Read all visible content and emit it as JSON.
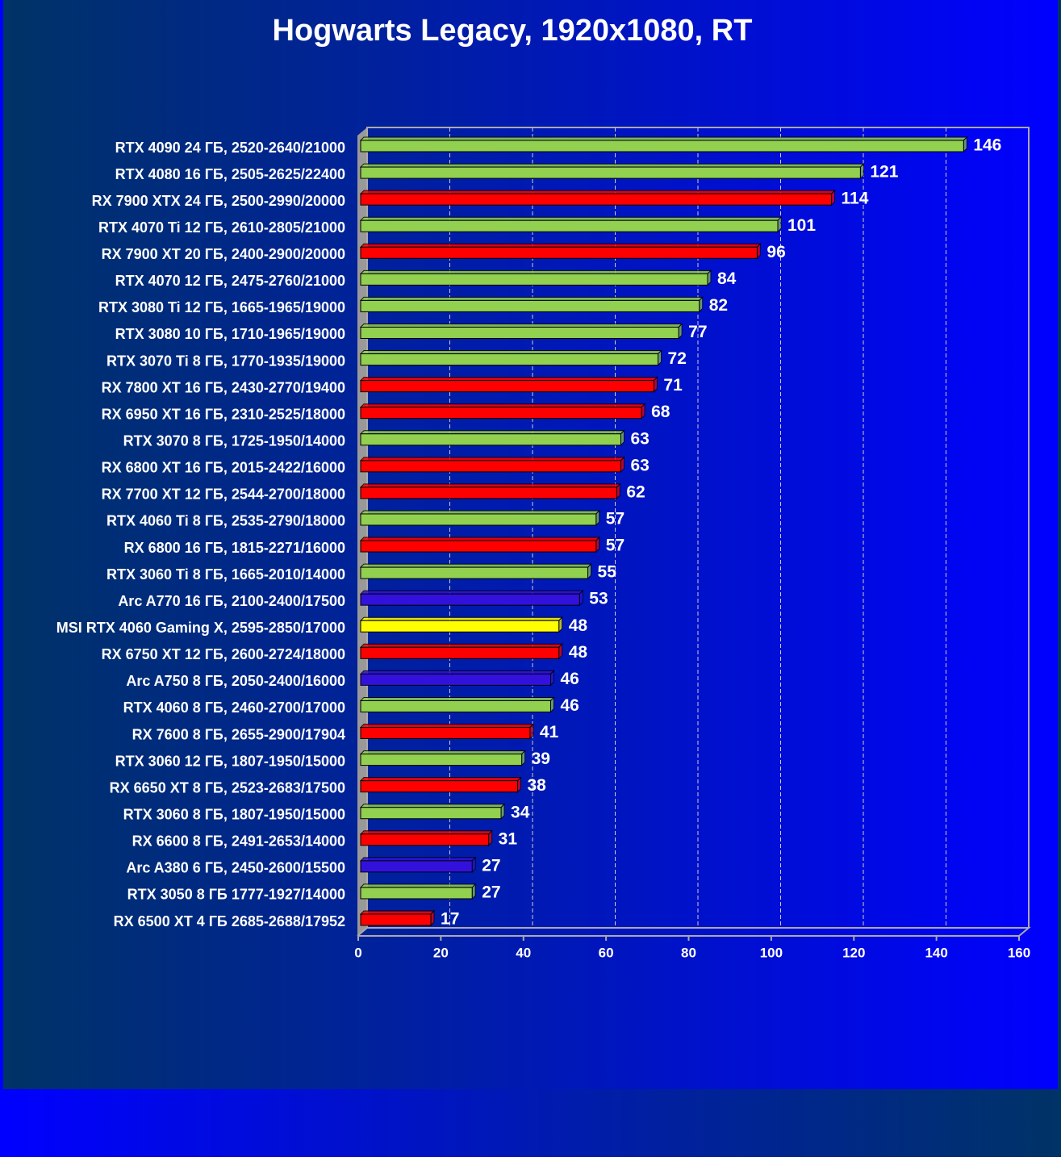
{
  "chart_data": {
    "type": "bar",
    "orientation": "horizontal",
    "title": "Hogwarts Legacy, 1920x1080, RT",
    "categories": [
      "RTX 4090 24 ГБ, 2520-2640/21000",
      "RTX 4080 16 ГБ, 2505-2625/22400",
      "RX 7900 XTX 24 ГБ, 2500-2990/20000",
      "RTX 4070 Ti 12 ГБ, 2610-2805/21000",
      "RX 7900 XT 20 ГБ, 2400-2900/20000",
      "RTX 4070 12 ГБ, 2475-2760/21000",
      "RTX 3080 Ti 12 ГБ, 1665-1965/19000",
      "RTX 3080 10 ГБ, 1710-1965/19000",
      "RTX 3070 Ti 8 ГБ, 1770-1935/19000",
      "RX 7800 XT 16 ГБ, 2430-2770/19400",
      "RX 6950 XT 16 ГБ, 2310-2525/18000",
      "RTX 3070 8 ГБ, 1725-1950/14000",
      "RX 6800 XT 16 ГБ, 2015-2422/16000",
      "RX 7700 XT 12 ГБ, 2544-2700/18000",
      "RTX 4060 Ti 8 ГБ, 2535-2790/18000",
      "RX 6800 16 ГБ, 1815-2271/16000",
      "RTX 3060 Ti 8 ГБ, 1665-2010/14000",
      "Arc A770 16 ГБ, 2100-2400/17500",
      "MSI RTX 4060 Gaming X, 2595-2850/17000",
      "RX 6750 XT 12 ГБ, 2600-2724/18000",
      "Arc A750 8 ГБ, 2050-2400/16000",
      "RTX 4060 8 ГБ, 2460-2700/17000",
      "RX 7600 8 ГБ, 2655-2900/17904",
      "RTX 3060 12 ГБ, 1807-1950/15000",
      "RX 6650 XT 8 ГБ, 2523-2683/17500",
      "RTX 3060 8 ГБ, 1807-1950/15000",
      "RX 6600 8 ГБ, 2491-2653/14000",
      "Arc A380 6 ГБ, 2450-2600/15500",
      "RTX 3050 8 ГБ 1777-1927/14000",
      "RX 6500 XT 4 ГБ 2685-2688/17952"
    ],
    "values": [
      146,
      121,
      114,
      101,
      96,
      84,
      82,
      77,
      72,
      71,
      68,
      63,
      63,
      62,
      57,
      57,
      55,
      53,
      48,
      48,
      46,
      46,
      41,
      39,
      38,
      34,
      31,
      27,
      27,
      17
    ],
    "colors": [
      "#92d050",
      "#92d050",
      "#ff0000",
      "#92d050",
      "#ff0000",
      "#92d050",
      "#92d050",
      "#92d050",
      "#92d050",
      "#ff0000",
      "#ff0000",
      "#92d050",
      "#ff0000",
      "#ff0000",
      "#92d050",
      "#ff0000",
      "#92d050",
      "#3311dd",
      "#ffff00",
      "#ff0000",
      "#3311dd",
      "#92d050",
      "#ff0000",
      "#92d050",
      "#ff0000",
      "#92d050",
      "#ff0000",
      "#3311dd",
      "#92d050",
      "#ff0000"
    ],
    "xlim": [
      0,
      160
    ],
    "xticks": [
      0,
      20,
      40,
      60,
      80,
      100,
      120,
      140,
      160
    ],
    "grid": true
  }
}
